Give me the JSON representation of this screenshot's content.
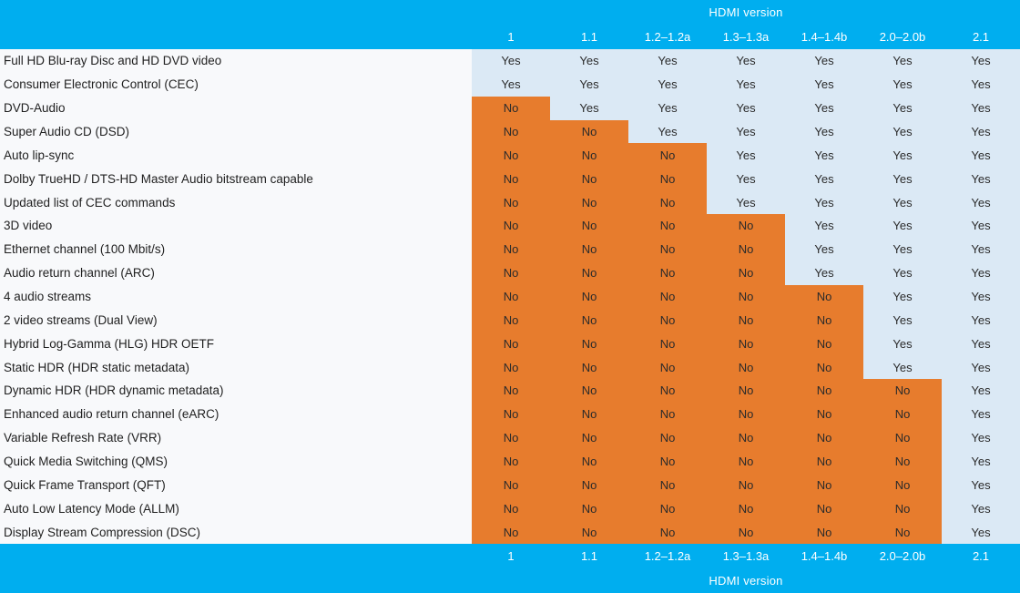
{
  "chart_data": {
    "type": "table",
    "header_title": "HDMI version",
    "footer_title": "HDMI version",
    "columns": [
      "1",
      "1.1",
      "1.2–1.2a",
      "1.3–1.3a",
      "1.4–1.4b",
      "2.0–2.0b",
      "2.1"
    ],
    "rows": [
      {
        "feature": "Full HD Blu-ray Disc and HD DVD video",
        "values": [
          "Yes",
          "Yes",
          "Yes",
          "Yes",
          "Yes",
          "Yes",
          "Yes"
        ]
      },
      {
        "feature": "Consumer Electronic Control (CEC)",
        "values": [
          "Yes",
          "Yes",
          "Yes",
          "Yes",
          "Yes",
          "Yes",
          "Yes"
        ]
      },
      {
        "feature": "DVD-Audio",
        "values": [
          "No",
          "Yes",
          "Yes",
          "Yes",
          "Yes",
          "Yes",
          "Yes"
        ]
      },
      {
        "feature": "Super Audio CD (DSD)",
        "values": [
          "No",
          "No",
          "Yes",
          "Yes",
          "Yes",
          "Yes",
          "Yes"
        ]
      },
      {
        "feature": "Auto lip-sync",
        "values": [
          "No",
          "No",
          "No",
          "Yes",
          "Yes",
          "Yes",
          "Yes"
        ]
      },
      {
        "feature": "Dolby TrueHD / DTS-HD Master Audio bitstream capable",
        "values": [
          "No",
          "No",
          "No",
          "Yes",
          "Yes",
          "Yes",
          "Yes"
        ]
      },
      {
        "feature": "Updated list of CEC commands",
        "values": [
          "No",
          "No",
          "No",
          "Yes",
          "Yes",
          "Yes",
          "Yes"
        ]
      },
      {
        "feature": "3D video",
        "values": [
          "No",
          "No",
          "No",
          "No",
          "Yes",
          "Yes",
          "Yes"
        ]
      },
      {
        "feature": "Ethernet channel (100 Mbit/s)",
        "values": [
          "No",
          "No",
          "No",
          "No",
          "Yes",
          "Yes",
          "Yes"
        ]
      },
      {
        "feature": "Audio return channel (ARC)",
        "values": [
          "No",
          "No",
          "No",
          "No",
          "Yes",
          "Yes",
          "Yes"
        ]
      },
      {
        "feature": "4 audio streams",
        "values": [
          "No",
          "No",
          "No",
          "No",
          "No",
          "Yes",
          "Yes"
        ]
      },
      {
        "feature": "2 video streams (Dual View)",
        "values": [
          "No",
          "No",
          "No",
          "No",
          "No",
          "Yes",
          "Yes"
        ]
      },
      {
        "feature": "Hybrid Log-Gamma (HLG) HDR OETF",
        "values": [
          "No",
          "No",
          "No",
          "No",
          "No",
          "Yes",
          "Yes"
        ]
      },
      {
        "feature": "Static HDR (HDR static metadata)",
        "values": [
          "No",
          "No",
          "No",
          "No",
          "No",
          "Yes",
          "Yes"
        ]
      },
      {
        "feature": "Dynamic HDR (HDR dynamic metadata)",
        "values": [
          "No",
          "No",
          "No",
          "No",
          "No",
          "No",
          "Yes"
        ]
      },
      {
        "feature": "Enhanced audio return channel (eARC)",
        "values": [
          "No",
          "No",
          "No",
          "No",
          "No",
          "No",
          "Yes"
        ]
      },
      {
        "feature": "Variable Refresh Rate (VRR)",
        "values": [
          "No",
          "No",
          "No",
          "No",
          "No",
          "No",
          "Yes"
        ]
      },
      {
        "feature": "Quick Media Switching (QMS)",
        "values": [
          "No",
          "No",
          "No",
          "No",
          "No",
          "No",
          "Yes"
        ]
      },
      {
        "feature": "Quick Frame Transport (QFT)",
        "values": [
          "No",
          "No",
          "No",
          "No",
          "No",
          "No",
          "Yes"
        ]
      },
      {
        "feature": "Auto Low Latency Mode (ALLM)",
        "values": [
          "No",
          "No",
          "No",
          "No",
          "No",
          "No",
          "Yes"
        ]
      },
      {
        "feature": "Display Stream Compression (DSC)",
        "values": [
          "No",
          "No",
          "No",
          "No",
          "No",
          "No",
          "Yes"
        ]
      }
    ],
    "legend": {
      "yes_label": "Yes",
      "no_label": "No"
    }
  },
  "colors": {
    "header_bg": "#00AEEF",
    "header_text": "#FFFFFF",
    "yes_bg": "#DBE9F5",
    "no_bg": "#E77C2D",
    "cell_text": "#2B2B2B",
    "feature_bg": "#F8F9FB",
    "feature_text": "#1F1F1F"
  }
}
